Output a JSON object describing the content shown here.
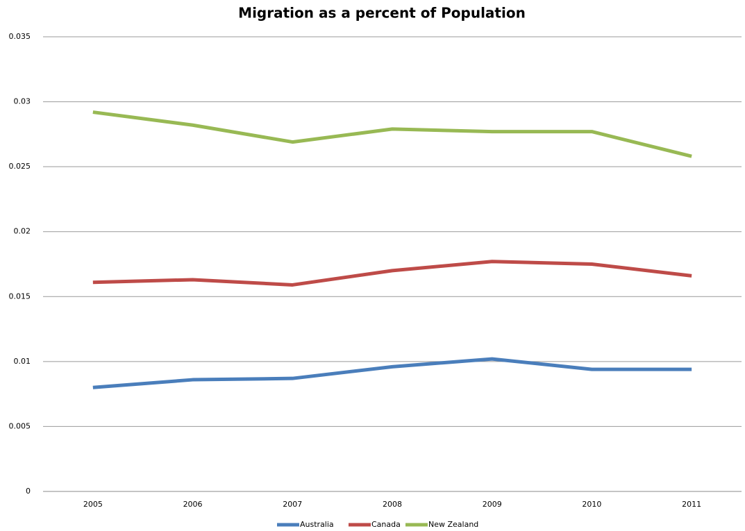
{
  "chart_data": {
    "type": "line",
    "title": "Migration as a percent of Population",
    "categories": [
      "2005",
      "2006",
      "2007",
      "2008",
      "2009",
      "2010",
      "2011"
    ],
    "series": [
      {
        "name": "Australia",
        "color": "#4a7ebb",
        "values": [
          0.008,
          0.0086,
          0.0087,
          0.0096,
          0.0102,
          0.0094,
          0.0094
        ]
      },
      {
        "name": "Canada",
        "color": "#be4b48",
        "values": [
          0.0161,
          0.0163,
          0.0159,
          0.017,
          0.0177,
          0.0175,
          0.0166
        ]
      },
      {
        "name": "New Zealand",
        "color": "#98b954",
        "values": [
          0.0292,
          0.0282,
          0.0269,
          0.0279,
          0.0277,
          0.0277,
          0.0258
        ]
      }
    ],
    "ylim": [
      0,
      0.035
    ],
    "yticks": [
      0,
      0.005,
      0.01,
      0.015,
      0.02,
      0.025,
      0.03,
      0.035
    ],
    "grid": true,
    "legend": "bottom"
  }
}
